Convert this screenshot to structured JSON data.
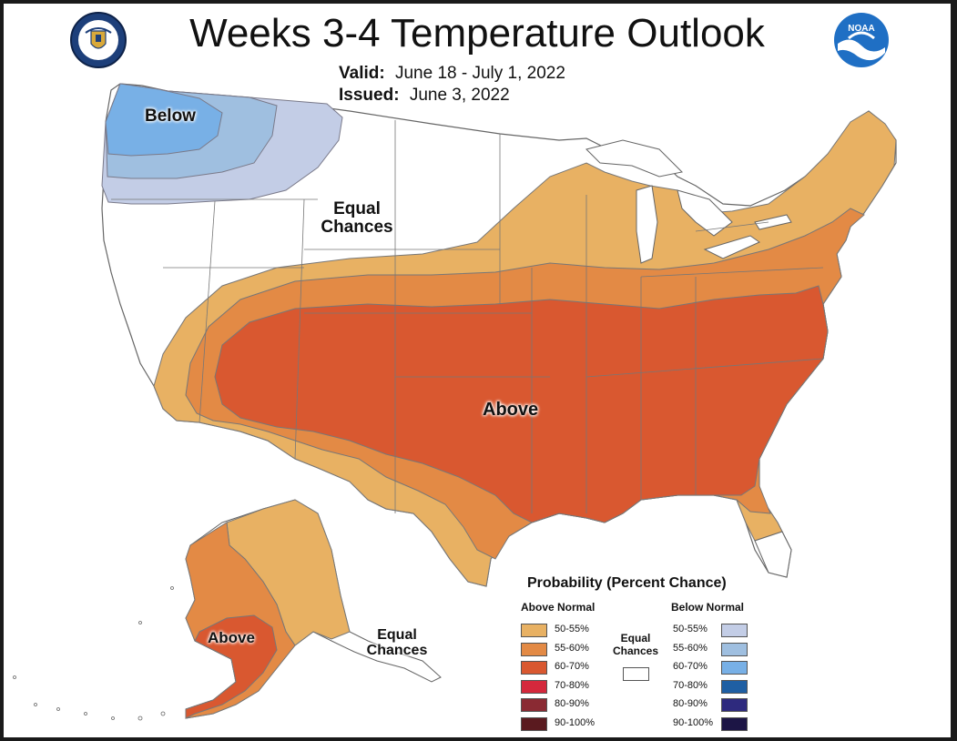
{
  "header": {
    "title": "Weeks 3-4 Temperature Outlook",
    "valid_label": "Valid:",
    "valid_value": "June 18 - July 1, 2022",
    "issued_label": "Issued:",
    "issued_value": "June 3, 2022"
  },
  "map_labels": {
    "below": "Below",
    "equal_chances_line1": "Equal",
    "equal_chances_line2": "Chances",
    "above_conus": "Above",
    "above_alaska": "Above",
    "alaska_equal_line1": "Equal",
    "alaska_equal_line2": "Chances"
  },
  "legend": {
    "title": "Probability (Percent Chance)",
    "above_header": "Above Normal",
    "below_header": "Below Normal",
    "equal_line1": "Equal",
    "equal_line2": "Chances",
    "above": [
      {
        "label": "50-55%",
        "color": "#e8b163"
      },
      {
        "label": "55-60%",
        "color": "#e38a45"
      },
      {
        "label": "60-70%",
        "color": "#d95830"
      },
      {
        "label": "70-80%",
        "color": "#d4283c"
      },
      {
        "label": "80-90%",
        "color": "#8a2a33"
      },
      {
        "label": "90-100%",
        "color": "#5a1a1f"
      }
    ],
    "below": [
      {
        "label": "50-55%",
        "color": "#c3cde6"
      },
      {
        "label": "55-60%",
        "color": "#9fbfe0"
      },
      {
        "label": "60-70%",
        "color": "#78b0e6"
      },
      {
        "label": "70-80%",
        "color": "#1f5fa3"
      },
      {
        "label": "80-90%",
        "color": "#2e2a7e"
      },
      {
        "label": "90-100%",
        "color": "#1c1545"
      }
    ]
  },
  "logos": {
    "left": "department-of-commerce-seal",
    "right": "noaa-logo",
    "noaa_text": "NOAA"
  }
}
